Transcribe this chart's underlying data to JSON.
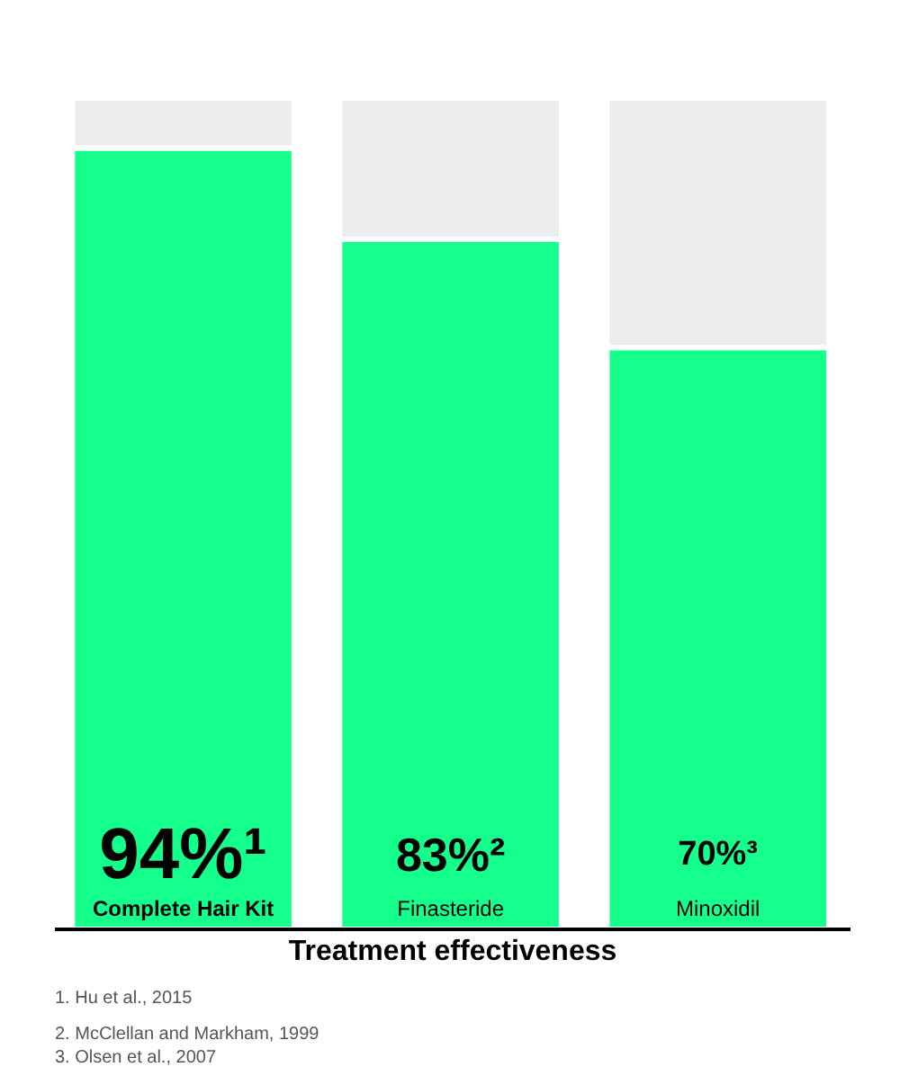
{
  "chart_data": {
    "type": "bar",
    "stacked": true,
    "xlabel": "Treatment effectiveness",
    "categories": [
      "Complete Hair Kit",
      "Finasteride",
      "Minoxidil"
    ],
    "series": [
      {
        "color": "#14ff8c",
        "values": [
          94,
          83,
          70
        ],
        "value_labels": [
          "94%¹",
          "83%²",
          "70%³"
        ]
      },
      {
        "color": "#ececec",
        "values": [
          6,
          17,
          30
        ]
      }
    ],
    "ylim": [
      0,
      100
    ],
    "tick_labels": false,
    "grid": false,
    "annotations": [
      "1. Hu et al., 2015",
      "2. McClellan and Markham, 1999",
      "3. Olsen et al., 2007"
    ]
  }
}
